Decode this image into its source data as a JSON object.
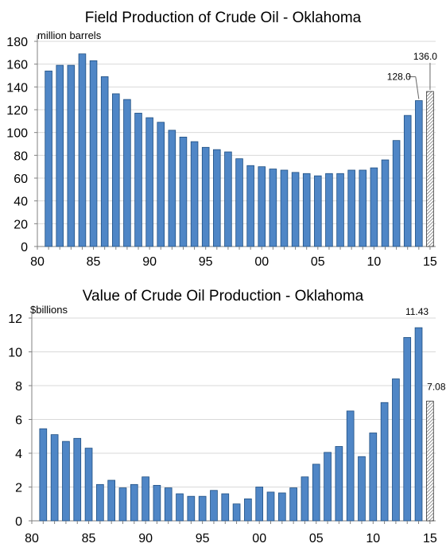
{
  "colors": {
    "bar_fill": "#4f86c6",
    "bar_stroke": "#1f4f82",
    "estimate_hatch": "#555555",
    "grid": "#d9d9d9",
    "axis": "#808080"
  },
  "chart_data": [
    {
      "type": "bar",
      "title": "Field Production  of Crude Oil - Oklahoma",
      "unit_label": "million barrels",
      "x": [
        1981,
        1982,
        1983,
        1984,
        1985,
        1986,
        1987,
        1988,
        1989,
        1990,
        1991,
        1992,
        1993,
        1994,
        1995,
        1996,
        1997,
        1998,
        1999,
        2000,
        2001,
        2002,
        2003,
        2004,
        2005,
        2006,
        2007,
        2008,
        2009,
        2010,
        2011,
        2012,
        2013,
        2014,
        2015
      ],
      "values": [
        154,
        159,
        159,
        169,
        163,
        149,
        134,
        129,
        117,
        113,
        109,
        102,
        96,
        92,
        87,
        85,
        83,
        77,
        71,
        70,
        68,
        67,
        65,
        64,
        62,
        64,
        64,
        67,
        67,
        69,
        76,
        93,
        115,
        128,
        136
      ],
      "x_tick_labels": [
        "80",
        "85",
        "90",
        "95",
        "00",
        "05",
        "10",
        "15"
      ],
      "y_tick_labels": [
        "0",
        "20",
        "40",
        "60",
        "80",
        "100",
        "120",
        "140",
        "160",
        "180"
      ],
      "ylim": [
        0,
        180
      ],
      "grid": true,
      "hatched_last_bar": true,
      "annotations": [
        {
          "year": 2014,
          "text": "128.0"
        },
        {
          "year": 2015,
          "text": "136.0"
        }
      ]
    },
    {
      "type": "bar",
      "title": "Value of Crude  Oil Production  - Oklahoma",
      "unit_label": "$billions",
      "x": [
        1981,
        1982,
        1983,
        1984,
        1985,
        1986,
        1987,
        1988,
        1989,
        1990,
        1991,
        1992,
        1993,
        1994,
        1995,
        1996,
        1997,
        1998,
        1999,
        2000,
        2001,
        2002,
        2003,
        2004,
        2005,
        2006,
        2007,
        2008,
        2009,
        2010,
        2011,
        2012,
        2013,
        2014,
        2015
      ],
      "values": [
        5.45,
        5.1,
        4.7,
        4.88,
        4.3,
        2.15,
        2.4,
        1.95,
        2.15,
        2.6,
        2.1,
        1.95,
        1.6,
        1.45,
        1.45,
        1.8,
        1.6,
        1.0,
        1.3,
        2.0,
        1.7,
        1.65,
        1.95,
        2.6,
        3.35,
        4.05,
        4.4,
        6.5,
        3.8,
        5.2,
        7.0,
        8.4,
        10.85,
        11.43,
        7.08
      ],
      "x_tick_labels": [
        "80",
        "85",
        "90",
        "95",
        "00",
        "05",
        "10",
        "15"
      ],
      "y_tick_labels": [
        "0",
        "2",
        "4",
        "6",
        "8",
        "10",
        "12"
      ],
      "ylim": [
        0,
        12
      ],
      "grid": true,
      "hatched_last_bar": true,
      "annotations": [
        {
          "year": 2014,
          "text": "11.43"
        },
        {
          "year": 2015,
          "text": "7.08"
        }
      ]
    }
  ]
}
